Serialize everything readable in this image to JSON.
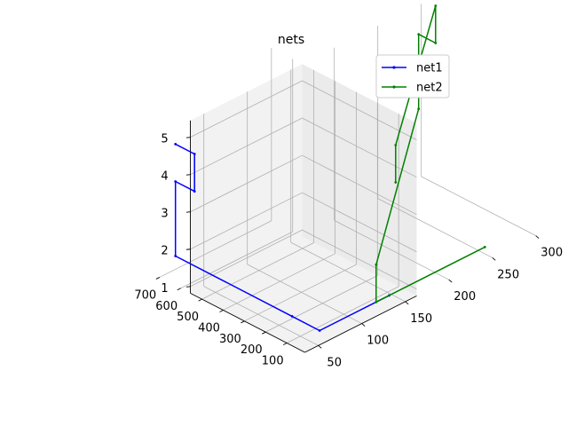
{
  "chart_data": {
    "type": "line3d",
    "title": "nets",
    "grid": true,
    "legend_position": "top-right",
    "x_ticks": [
      "50",
      "100",
      "150",
      "200",
      "250",
      "300"
    ],
    "y_ticks": [
      "100",
      "200",
      "300",
      "400",
      "500",
      "600",
      "700"
    ],
    "z_ticks": [
      "1",
      "2",
      "3",
      "4",
      "5"
    ],
    "series": [
      {
        "name": "net1",
        "color": "#0000ff",
        "points": [
          [
            60,
            730,
            4
          ],
          [
            60,
            640,
            4
          ],
          [
            60,
            640,
            3
          ],
          [
            60,
            730,
            3
          ],
          [
            60,
            730,
            1
          ],
          [
            60,
            180,
            1
          ],
          [
            60,
            50,
            1
          ],
          [
            140,
            50,
            1
          ]
        ]
      },
      {
        "name": "net2",
        "color": "#008000",
        "points": [
          [
            250,
            50,
            1
          ],
          [
            125,
            50,
            1
          ],
          [
            125,
            50,
            2
          ],
          [
            325,
            670,
            2
          ],
          [
            325,
            670,
            4
          ],
          [
            325,
            590,
            4
          ],
          [
            325,
            590,
            5
          ],
          [
            145,
            40,
            5
          ],
          [
            145,
            40,
            4
          ]
        ]
      }
    ]
  }
}
